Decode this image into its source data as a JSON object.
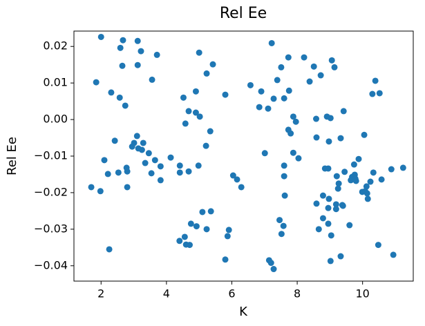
{
  "chart_data": {
    "type": "scatter",
    "title": "Rel Ee",
    "x_label": "K",
    "y_label": "Rel Ee",
    "color": "#1f77b4",
    "x": [
      1.7,
      2.0,
      1.85,
      1.98,
      2.1,
      2.21,
      2.25,
      2.31,
      2.42,
      2.53,
      2.57,
      2.59,
      2.67,
      2.65,
      2.74,
      2.78,
      2.8,
      2.8,
      2.95,
      3.01,
      3.1,
      3.12,
      3.12,
      3.14,
      3.22,
      3.25,
      3.29,
      3.35,
      3.46,
      3.54,
      3.56,
      3.65,
      3.71,
      3.82,
      3.82,
      4.13,
      4.41,
      4.41,
      4.4,
      4.52,
      4.56,
      4.58,
      4.6,
      4.68,
      4.68,
      4.71,
      4.75,
      4.9,
      4.9,
      4.92,
      4.98,
      5.0,
      5.02,
      5.1,
      5.21,
      5.23,
      5.23,
      5.34,
      5.36,
      5.42,
      5.8,
      5.8,
      5.87,
      5.91,
      6.04,
      6.16,
      6.29,
      6.57,
      6.84,
      6.9,
      7.01,
      7.11,
      7.14,
      7.2,
      7.22,
      7.28,
      7.28,
      7.39,
      7.46,
      7.51,
      7.52,
      7.58,
      7.6,
      7.6,
      7.6,
      7.62,
      7.73,
      7.73,
      7.75,
      7.8,
      7.88,
      7.88,
      7.96,
      8.04,
      8.21,
      8.38,
      8.51,
      8.58,
      8.59,
      8.59,
      8.66,
      8.72,
      8.79,
      8.79,
      8.85,
      8.91,
      8.95,
      8.95,
      8.95,
      8.97,
      8.97,
      9.02,
      9.02,
      9.04,
      9.06,
      9.14,
      9.19,
      9.19,
      9.21,
      9.25,
      9.27,
      9.33,
      9.33,
      9.38,
      9.4,
      9.42,
      9.45,
      9.6,
      9.64,
      9.68,
      9.74,
      9.76,
      9.78,
      9.8,
      9.88,
      9.99,
      10.05,
      10.08,
      10.12,
      10.14,
      10.16,
      10.24,
      10.3,
      10.33,
      10.39,
      10.48,
      10.52,
      10.58,
      10.94,
      10.88,
      11.24
    ],
    "values": [
      -0.0185,
      0.0226,
      0.0102,
      -0.0196,
      -0.0111,
      -0.0149,
      -0.0355,
      0.0074,
      -0.0058,
      -0.0145,
      0.006,
      0.0196,
      0.0217,
      0.0147,
      0.0038,
      -0.0132,
      -0.0142,
      -0.0185,
      -0.0074,
      -0.0064,
      -0.0045,
      0.0215,
      0.0149,
      -0.0079,
      0.0187,
      -0.0083,
      -0.0064,
      -0.0119,
      -0.0092,
      -0.0147,
      0.0109,
      -0.0111,
      0.0177,
      -0.0128,
      -0.0166,
      -0.0104,
      -0.0126,
      -0.0145,
      -0.0332,
      0.006,
      -0.0321,
      -0.0011,
      -0.0342,
      -0.0142,
      0.0023,
      -0.0343,
      -0.0285,
      0.0077,
      0.0019,
      -0.0292,
      -0.0126,
      0.0183,
      0.0008,
      -0.0253,
      -0.0072,
      -0.03,
      0.0126,
      -0.0032,
      -0.0251,
      0.0151,
      0.0068,
      -0.0383,
      -0.0319,
      -0.0302,
      -0.0153,
      -0.0164,
      -0.0185,
      0.0094,
      0.0034,
      0.0077,
      -0.0092,
      0.003,
      -0.0385,
      -0.0392,
      0.0209,
      0.0057,
      -0.0409,
      0.0108,
      -0.0275,
      0.0143,
      -0.0313,
      -0.0291,
      -0.0126,
      0.0058,
      -0.0155,
      -0.0208,
      0.017,
      -0.0028,
      0.0079,
      -0.0038,
      0.0008,
      -0.0091,
      -0.0006,
      -0.0106,
      0.017,
      0.0104,
      0.0145,
      0.0002,
      -0.0049,
      -0.023,
      -0.03,
      0.0121,
      -0.0208,
      -0.027,
      -0.0134,
      0.0008,
      -0.0134,
      -0.0242,
      -0.0285,
      -0.006,
      -0.0217,
      0.0004,
      -0.0387,
      -0.0317,
      0.0162,
      0.0143,
      -0.0245,
      -0.0232,
      -0.0155,
      -0.0189,
      -0.0175,
      -0.0051,
      -0.0374,
      -0.0234,
      -0.0236,
      0.0023,
      -0.0143,
      -0.0289,
      -0.0166,
      -0.0157,
      -0.0123,
      -0.0151,
      -0.0162,
      -0.0168,
      -0.0108,
      -0.0198,
      -0.0042,
      -0.0196,
      -0.0183,
      -0.0202,
      -0.0217,
      -0.017,
      0.007,
      -0.0145,
      0.0106,
      -0.0343,
      0.0072,
      -0.0164,
      -0.037,
      -0.0136,
      -0.0132
    ],
    "xlim": [
      1.17,
      11.55
    ],
    "ylim": [
      -0.0442,
      0.0242
    ],
    "xticks": [
      2,
      4,
      6,
      8,
      10
    ],
    "yticks": [
      {
        "value": -0.04,
        "label": "−0.04"
      },
      {
        "value": -0.03,
        "label": "−0.03"
      },
      {
        "value": -0.02,
        "label": "−0.02"
      },
      {
        "value": -0.01,
        "label": "−0.01"
      },
      {
        "value": 0,
        "label": "0.00"
      },
      0.01,
      0.02
    ]
  }
}
